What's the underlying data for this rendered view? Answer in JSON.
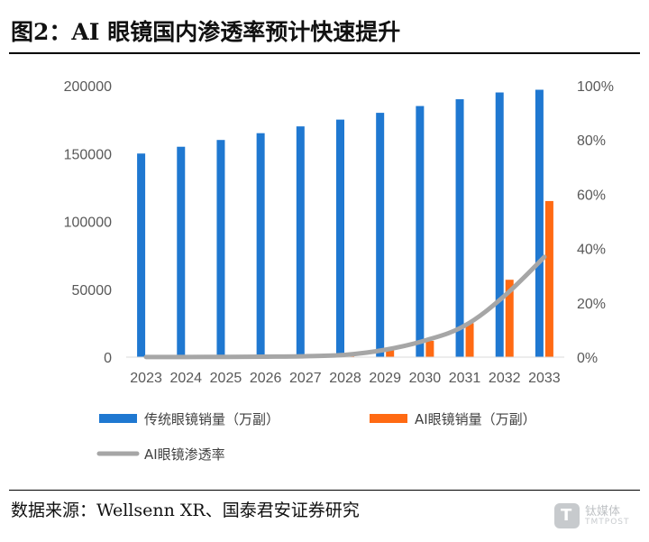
{
  "figure": {
    "title": "图2：AI 眼镜国内渗透率预计快速提升",
    "source": "数据来源：Wellsenn XR、国泰君安证券研究"
  },
  "watermark": {
    "icon": "tmtpost-logo-icon",
    "brand_cn": "钛媒体",
    "brand_en": "TMTPOST",
    "icon_letter": "T"
  },
  "colors": {
    "traditional": "#1F78D1",
    "ai": "#FF6A13",
    "rate": "#A6A6A6"
  },
  "chart_data": {
    "type": "bar",
    "categories": [
      "2023",
      "2024",
      "2025",
      "2026",
      "2027",
      "2028",
      "2029",
      "2030",
      "2031",
      "2032",
      "2033"
    ],
    "series": [
      {
        "name": "传统眼镜销量（万副）",
        "type": "bar",
        "axis": "left",
        "values": [
          150000,
          155000,
          160000,
          165000,
          170000,
          175000,
          180000,
          185000,
          190000,
          195000,
          197000
        ]
      },
      {
        "name": "AI眼镜销量（万副）",
        "type": "bar",
        "axis": "left",
        "values": [
          50,
          100,
          150,
          300,
          600,
          1500,
          5000,
          12000,
          25000,
          57000,
          115000
        ]
      },
      {
        "name": "AI眼镜渗透率",
        "type": "line",
        "axis": "right",
        "values": [
          0.0003,
          0.0006,
          0.0009,
          0.0018,
          0.0035,
          0.0085,
          0.027,
          0.061,
          0.116,
          0.226,
          0.369
        ]
      }
    ],
    "y_left": {
      "ticks": [
        "0",
        "50000",
        "100000",
        "150000",
        "200000"
      ],
      "range": [
        0,
        200000
      ]
    },
    "y_right": {
      "ticks": [
        "0%",
        "20%",
        "40%",
        "60%",
        "80%",
        "100%"
      ],
      "range": [
        0,
        1
      ]
    },
    "grid": false,
    "legend": "bottom"
  }
}
